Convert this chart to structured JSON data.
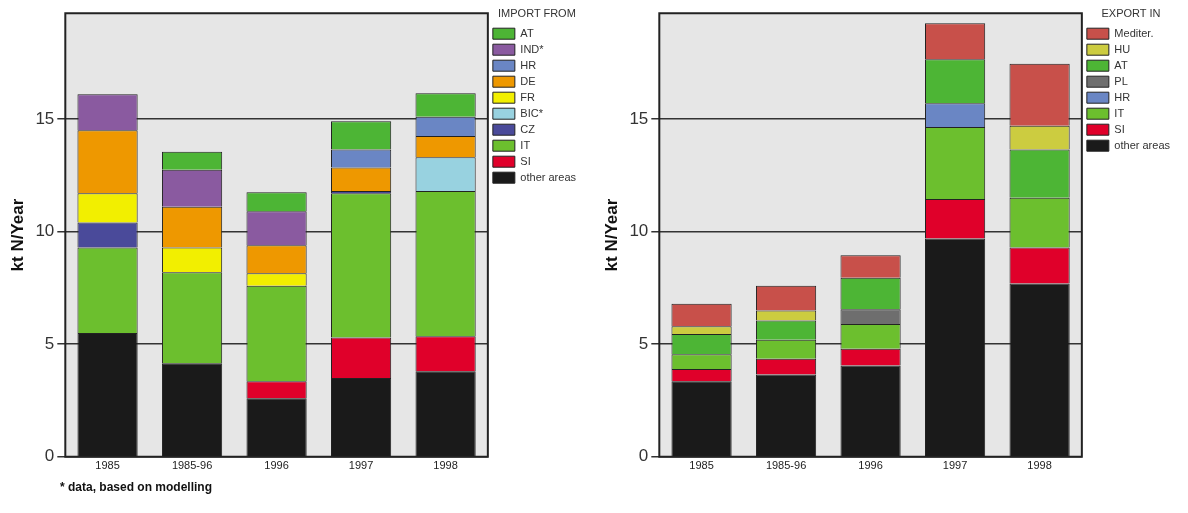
{
  "chart_data": [
    {
      "type": "bar",
      "stacked": true,
      "categories": [
        "1985",
        "1985-96",
        "1996",
        "1997",
        "1998"
      ],
      "ylabel": "kt N/Year",
      "ylim": [
        0,
        19.7
      ],
      "yticks": [
        0,
        5,
        10,
        15
      ],
      "grid": "y",
      "legend": "top right",
      "legend_title": "IMPORT FROM",
      "annotations": [
        "* data, based on modelling"
      ],
      "series": [
        {
          "name": "other areas",
          "color": "#1a1a1a",
          "values": [
            5.5,
            4.15,
            2.6,
            3.5,
            3.8
          ]
        },
        {
          "name": "SI",
          "color": "#e0002a",
          "values": [
            null,
            null,
            0.75,
            1.8,
            1.55
          ]
        },
        {
          "name": "IT",
          "color": "#6cbf2e",
          "values": [
            3.8,
            4.05,
            4.25,
            6.4,
            6.45
          ]
        },
        {
          "name": "CZ",
          "color": "#4a4a9a",
          "values": [
            1.1,
            null,
            null,
            0.1,
            null
          ]
        },
        {
          "name": "BIC*",
          "color": "#98d2e0",
          "values": [
            null,
            null,
            null,
            null,
            1.5
          ]
        },
        {
          "name": "FR",
          "color": "#f2ef00",
          "values": [
            1.3,
            1.1,
            0.55,
            null,
            null
          ]
        },
        {
          "name": "DE",
          "color": "#ee9800",
          "values": [
            2.8,
            1.8,
            1.25,
            1.05,
            0.95
          ]
        },
        {
          "name": "HR",
          "color": "#6a86c4",
          "values": [
            null,
            null,
            null,
            0.8,
            0.85
          ]
        },
        {
          "name": "IND*",
          "color": "#8a5aa0",
          "values": [
            1.6,
            1.65,
            1.5,
            null,
            null
          ]
        },
        {
          "name": "AT",
          "color": "#4db535",
          "values": [
            null,
            0.8,
            0.85,
            1.25,
            1.05
          ]
        }
      ]
    },
    {
      "type": "bar",
      "stacked": true,
      "categories": [
        "1985",
        "1985-96",
        "1996",
        "1997",
        "1998"
      ],
      "ylabel": "kt N/Year",
      "ylim": [
        0,
        19.7
      ],
      "yticks": [
        0,
        5,
        10,
        15
      ],
      "grid": "y",
      "legend": "top right",
      "legend_title": "EXPORT IN",
      "series": [
        {
          "name": "other areas",
          "color": "#1a1a1a",
          "values": [
            3.35,
            3.65,
            4.05,
            9.7,
            7.7
          ]
        },
        {
          "name": "SI",
          "color": "#e0002a",
          "values": [
            0.55,
            0.7,
            0.75,
            1.75,
            1.6
          ]
        },
        {
          "name": "IT",
          "color": "#6cbf2e",
          "values": [
            0.65,
            0.85,
            1.1,
            3.2,
            2.2
          ]
        },
        {
          "name": "HR",
          "color": "#6a86c4",
          "values": [
            null,
            null,
            null,
            1.05,
            null
          ]
        },
        {
          "name": "PL",
          "color": "#6e6e6e",
          "values": [
            null,
            null,
            0.65,
            null,
            null
          ]
        },
        {
          "name": "AT",
          "color": "#4db535",
          "values": [
            0.9,
            0.85,
            1.4,
            1.95,
            2.15
          ]
        },
        {
          "name": "HU",
          "color": "#cccc40",
          "values": [
            0.35,
            0.45,
            null,
            null,
            1.05
          ]
        },
        {
          "name": "Mediter.",
          "color": "#c8504a",
          "values": [
            1.0,
            1.1,
            1.0,
            1.6,
            2.75
          ]
        }
      ]
    }
  ]
}
